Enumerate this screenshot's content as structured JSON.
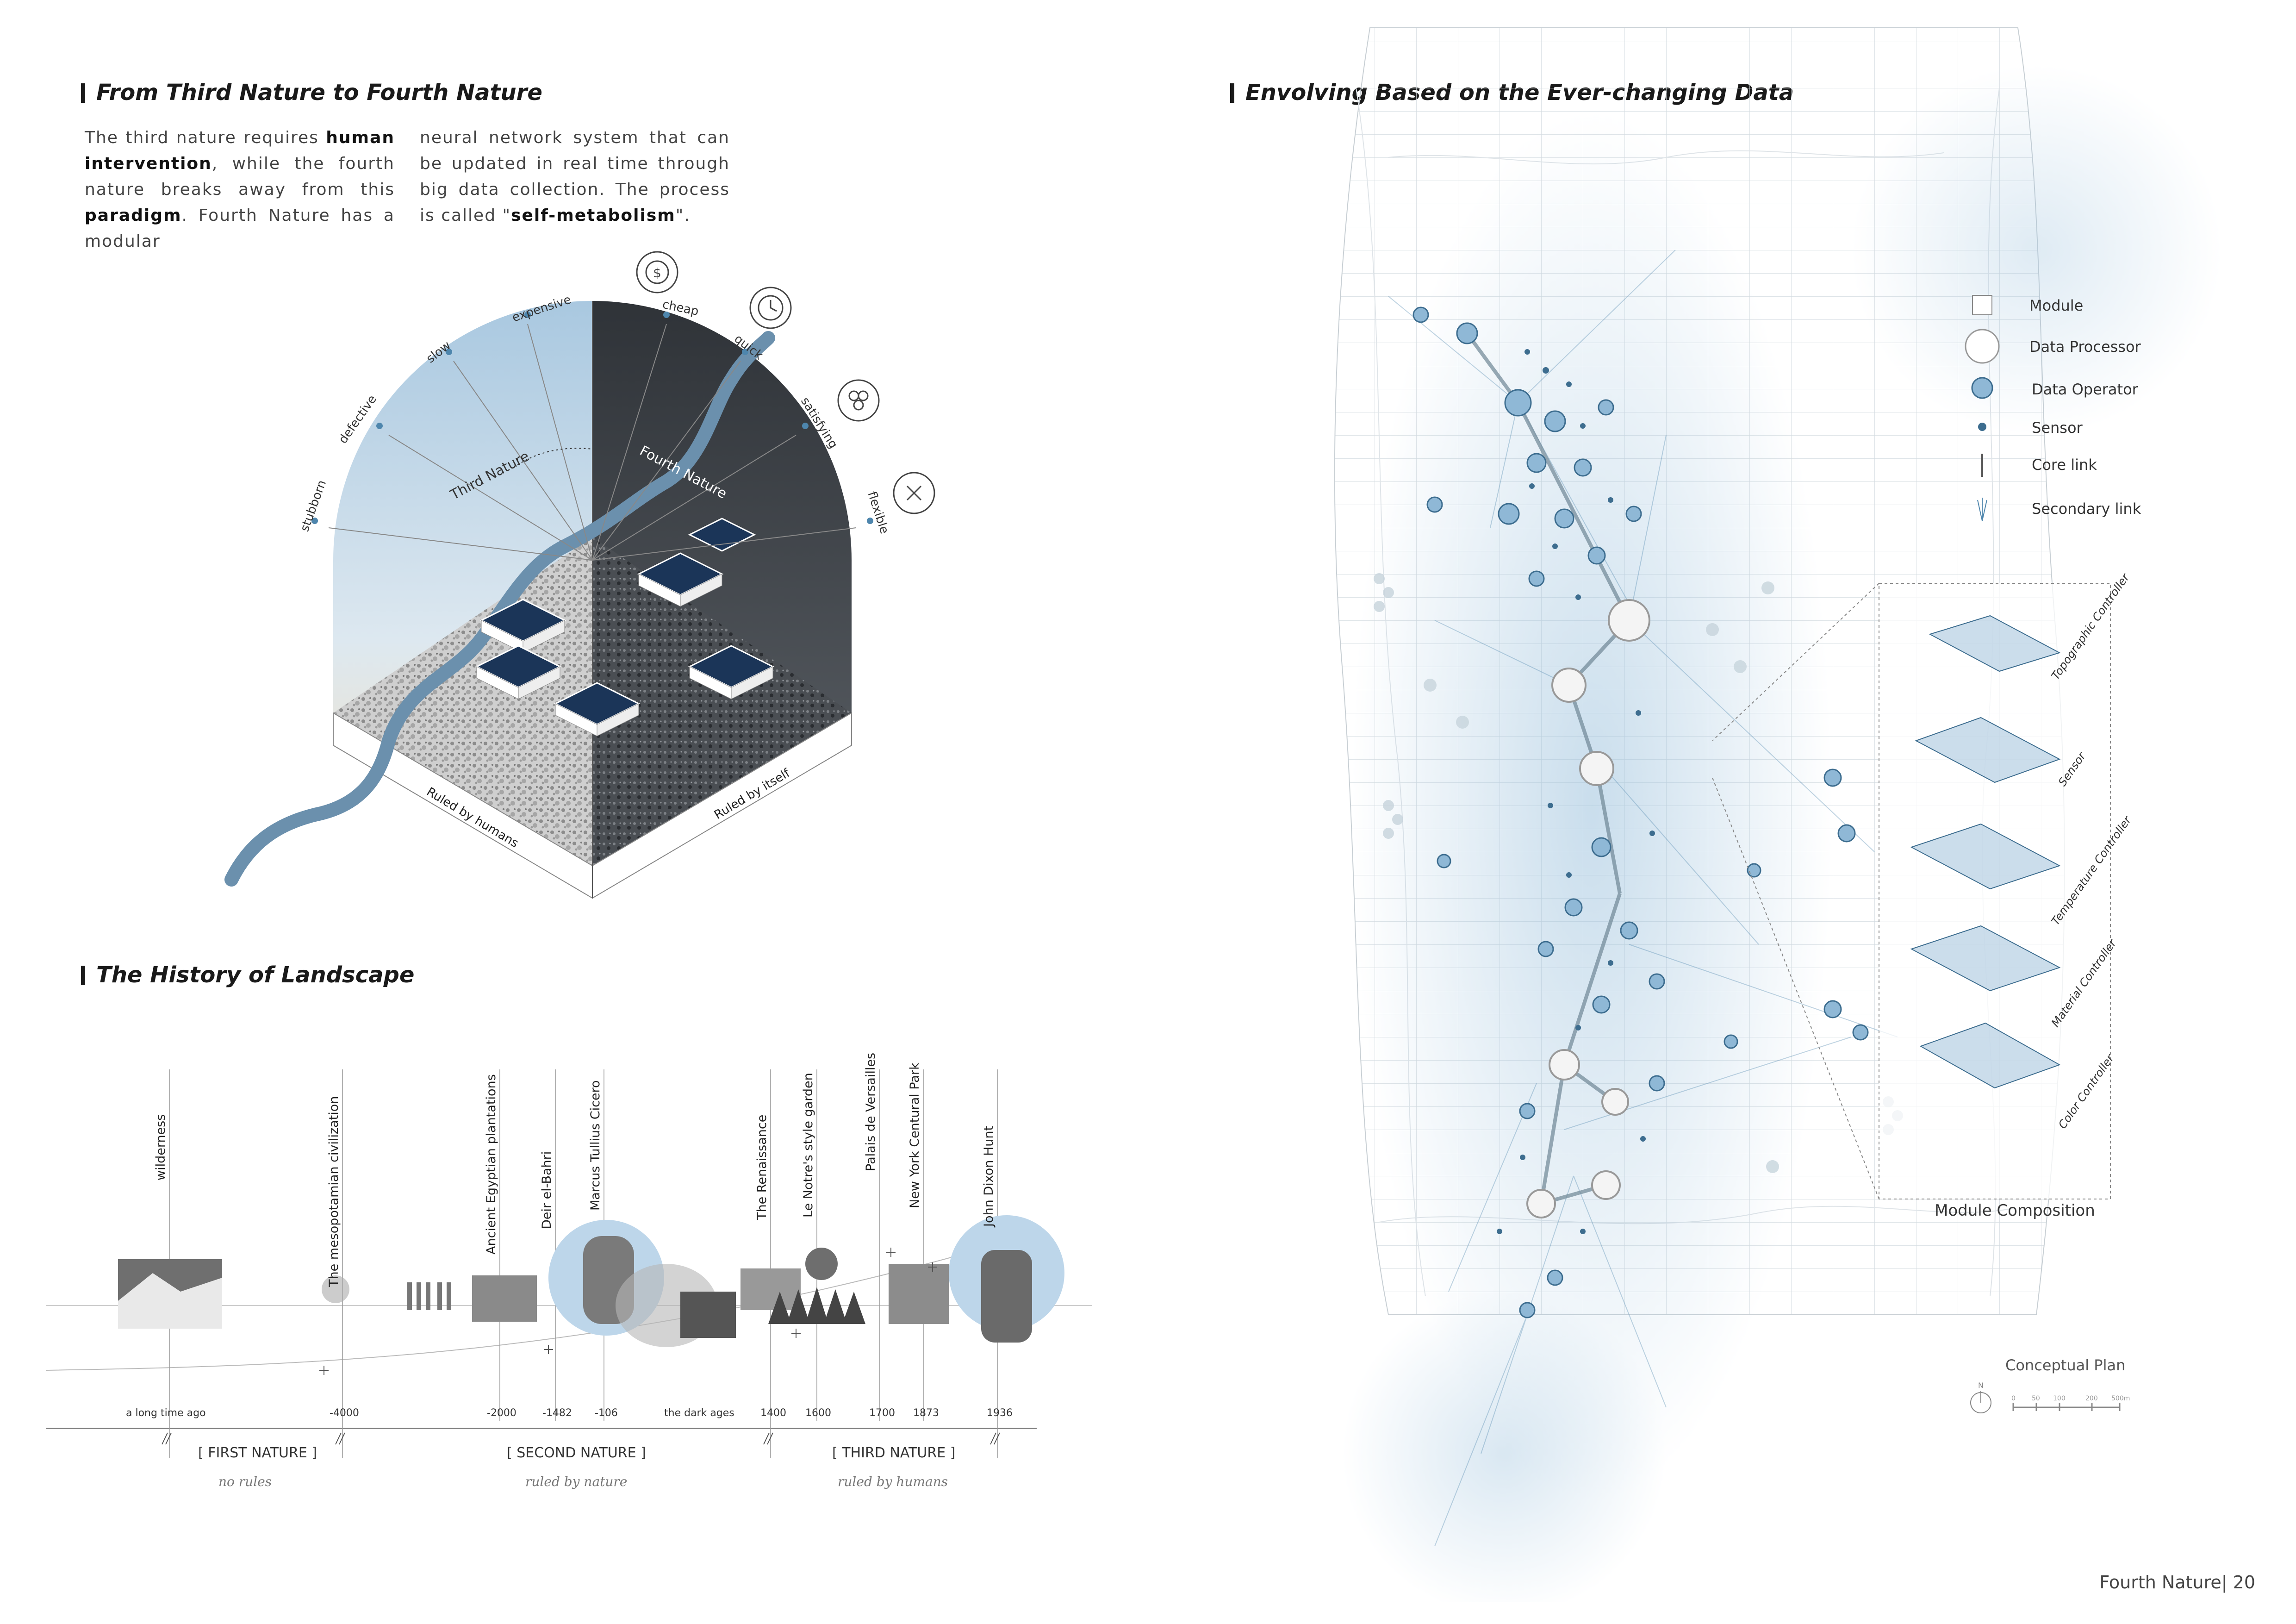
{
  "left": {
    "section1": {
      "title": "From Third Nature to Fourth Nature",
      "col1": {
        "p1": "The third nature requires ",
        "b1": "human intervention",
        "p2": ", while the fourth nature breaks away from this ",
        "b2": "paradigm",
        "p3": ". Fourth Nature has a modular"
      },
      "col2": {
        "p1": "neural network system that can be updated in real time through big data collection. The process is called \"",
        "b1": "self-metabolism",
        "p2": "\"."
      }
    },
    "dome": {
      "third_nature": "Third Nature",
      "fourth_nature": "Fourth Nature",
      "ruled_by_humans": "Ruled by humans",
      "ruled_by_itself": "Ruled by itself",
      "left_attributes": [
        "stubborn",
        "defective",
        "slow",
        "expensive"
      ],
      "right_attributes": [
        "cheap",
        "quick",
        "satisfying",
        "flexible"
      ],
      "icons": [
        "coin-icon",
        "clock-icon",
        "flower-icon",
        "scissors-icon"
      ],
      "colors": {
        "sky": "#b9d3e6",
        "river": "#6b90ad",
        "module": "#1b3558"
      }
    },
    "section2": {
      "title": "The History of Landscape",
      "events": [
        "wilderness",
        "The mesopotamian civilization",
        "Ancient Egyptian plantations",
        "Deir el-Bahri",
        "Marcus Tullius Cicero",
        "The Renaissance",
        "Le Notre's style garden",
        "Palais de Versailles",
        "New York Centural Park",
        "John Dixon Hunt"
      ],
      "years": [
        "a long time ago",
        "-4000",
        "-2000",
        "-1482",
        "-106",
        "the dark ages",
        "1400",
        "1600",
        "1700",
        "1873",
        "1936"
      ],
      "eras": [
        {
          "name": "[ FIRST NATURE ]",
          "rule": "no rules"
        },
        {
          "name": "[ SECOND NATURE ]",
          "rule": "ruled by nature"
        },
        {
          "name": "[ THIRD NATURE ]",
          "rule": "ruled by humans"
        }
      ]
    }
  },
  "right": {
    "title": "Envolving Based on the Ever-changing Data",
    "legend": [
      "Module",
      "Data Processor",
      "Data Operator",
      "Sensor",
      "Core link",
      "Secondary link"
    ],
    "module_composition": {
      "title": "Module Composition",
      "layers": [
        "Topographic Controller",
        "Sensor",
        "Temperature Controller",
        "Material Controller",
        "Color Controller"
      ]
    },
    "plan_label": "Conceptual Plan",
    "north": "N",
    "scale_labels": [
      "0",
      "50",
      "100",
      "200",
      "500m"
    ],
    "colors": {
      "node": "#8fb8d6",
      "node_dark": "#3d6d8f",
      "link": "#4e86ad"
    }
  },
  "footer": {
    "book": "Fourth Nature",
    "page": "20"
  }
}
